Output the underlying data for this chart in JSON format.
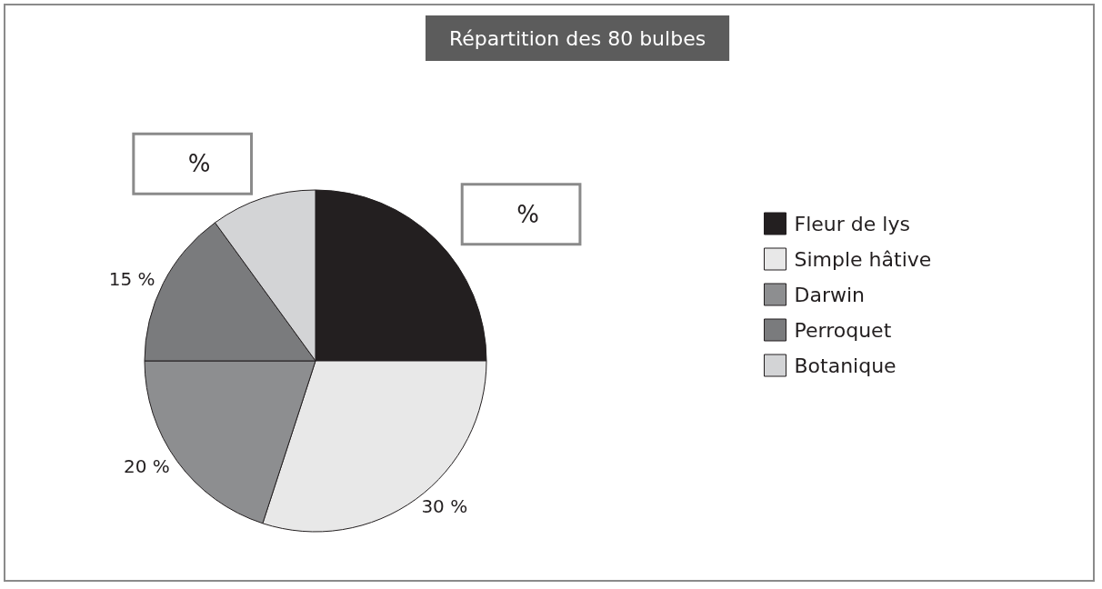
{
  "chart_data": {
    "type": "pie",
    "title": "Répartition des 80 bulbes",
    "categories": [
      "Fleur de lys",
      "Simple hâtive",
      "Darwin",
      "Perroquet",
      "Botanique"
    ],
    "values": [
      25,
      30,
      20,
      15,
      10
    ],
    "colors": [
      "#231f20",
      "#e8e8e8",
      "#8d8e90",
      "#7a7b7d",
      "#d3d4d6"
    ],
    "value_labels": [
      "%",
      "30 %",
      "20 %",
      "15 %",
      "%"
    ],
    "legend": "right"
  }
}
